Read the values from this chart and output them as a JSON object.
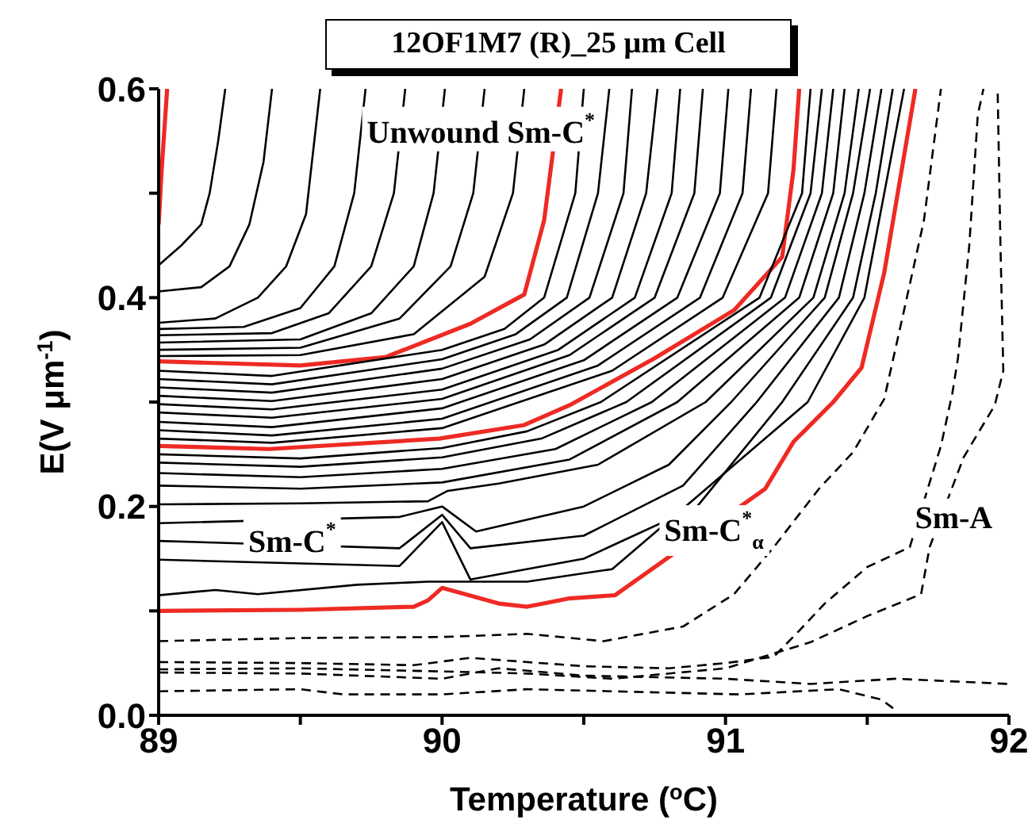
{
  "chart_data": {
    "type": "line",
    "title": "12OF1M7 (R)_25 μm Cell",
    "xlabel": "Temperature ($^{o}$C)",
    "ylabel": "E(V μm$^{-1}$)",
    "xlim": [
      89,
      92
    ],
    "xticks": [
      89,
      {
        "value": 89.5,
        "label": null
      },
      90,
      {
        "value": 90.5,
        "label": null
      },
      91,
      {
        "value": 91.5,
        "label": null
      },
      92
    ],
    "ylim": [
      0,
      0.6
    ],
    "yticks": [
      {
        "value": 0,
        "label": "0.0"
      },
      {
        "value": 0.1,
        "label": null
      },
      0.2,
      {
        "value": 0.3,
        "label": null
      },
      0.4,
      {
        "value": 0.5,
        "label": null
      },
      0.6
    ],
    "marker": "none",
    "line_style": "solid",
    "annotations": [
      "Unwound Sm-C$^{*}$",
      "Sm-C$^{*}$",
      "Sm-C$^{*}$$_{α}$",
      "Sm-A"
    ],
    "series": [
      {
        "color": "#ee2a24",
        "x": [
          89.0,
          89.01,
          89.02,
          89.03
        ],
        "values": [
          0.47,
          0.52,
          0.56,
          0.6
        ]
      },
      {
        "color": "#000000",
        "x": [
          89,
          89.08,
          89.15,
          89.18,
          89.21,
          89.235
        ],
        "values": [
          0.431,
          0.45,
          0.47,
          0.5,
          0.55,
          0.6
        ]
      },
      {
        "color": "#000000",
        "x": [
          89,
          89.15,
          89.25,
          89.32,
          89.37,
          89.4
        ],
        "values": [
          0.406,
          0.41,
          0.43,
          0.47,
          0.53,
          0.6
        ]
      },
      {
        "color": "#000000",
        "x": [
          89,
          89.2,
          89.35,
          89.45,
          89.52,
          89.57
        ],
        "values": [
          0.376,
          0.38,
          0.4,
          0.43,
          0.48,
          0.6
        ]
      },
      {
        "color": "#000000",
        "x": [
          89,
          89.3,
          89.5,
          89.62,
          89.69,
          89.73
        ],
        "values": [
          0.37,
          0.372,
          0.39,
          0.43,
          0.5,
          0.6
        ]
      },
      {
        "color": "#000000",
        "x": [
          89,
          89.4,
          89.6,
          89.75,
          89.83,
          89.87
        ],
        "values": [
          0.364,
          0.366,
          0.385,
          0.43,
          0.5,
          0.6
        ]
      },
      {
        "color": "#000000",
        "x": [
          89,
          89.5,
          89.75,
          89.9,
          89.97,
          90.01
        ],
        "values": [
          0.357,
          0.36,
          0.385,
          0.43,
          0.5,
          0.6
        ]
      },
      {
        "color": "#000000",
        "x": [
          89,
          89.5,
          89.85,
          90.03,
          90.11,
          90.15
        ],
        "values": [
          0.35,
          0.352,
          0.38,
          0.43,
          0.5,
          0.6
        ]
      },
      {
        "color": "#000000",
        "x": [
          89,
          89.5,
          89.9,
          90.15,
          90.25,
          90.29
        ],
        "values": [
          0.344,
          0.345,
          0.365,
          0.42,
          0.5,
          0.6
        ]
      },
      {
        "color": "#ee2a24",
        "x": [
          89,
          89.5,
          89.8,
          90.1,
          90.29,
          90.36,
          90.42
        ],
        "values": [
          0.339,
          0.335,
          0.343,
          0.375,
          0.403,
          0.474,
          0.6
        ]
      },
      {
        "color": "#000000",
        "x": [
          89,
          89.4,
          90,
          90.22,
          90.36,
          90.47,
          90.5
        ],
        "values": [
          0.33,
          0.325,
          0.35,
          0.37,
          0.4,
          0.5,
          0.6
        ]
      },
      {
        "color": "#000000",
        "x": [
          89,
          89.4,
          90,
          90.26,
          90.44,
          90.55,
          90.59
        ],
        "values": [
          0.322,
          0.317,
          0.341,
          0.365,
          0.4,
          0.5,
          0.6
        ]
      },
      {
        "color": "#000000",
        "x": [
          89,
          89.4,
          90,
          90.31,
          90.52,
          90.64,
          90.67
        ],
        "values": [
          0.314,
          0.309,
          0.332,
          0.36,
          0.4,
          0.5,
          0.6
        ]
      },
      {
        "color": "#000000",
        "x": [
          89,
          89.4,
          90,
          90.36,
          90.6,
          90.72,
          90.76
        ],
        "values": [
          0.306,
          0.301,
          0.322,
          0.355,
          0.4,
          0.5,
          0.6
        ]
      },
      {
        "color": "#000000",
        "x": [
          89,
          89.4,
          90,
          90.41,
          90.68,
          90.81,
          90.84
        ],
        "values": [
          0.298,
          0.293,
          0.312,
          0.35,
          0.4,
          0.5,
          0.6
        ]
      },
      {
        "color": "#000000",
        "x": [
          89,
          89.4,
          90,
          90.45,
          90.75,
          90.89,
          90.92
        ],
        "values": [
          0.29,
          0.285,
          0.303,
          0.345,
          0.4,
          0.5,
          0.6
        ]
      },
      {
        "color": "#000000",
        "x": [
          89,
          89.4,
          90,
          90.5,
          90.83,
          90.98,
          91.01
        ],
        "values": [
          0.281,
          0.276,
          0.294,
          0.34,
          0.4,
          0.5,
          0.6
        ]
      },
      {
        "color": "#000000",
        "x": [
          89,
          89.4,
          90,
          90.55,
          90.91,
          91.06,
          91.09
        ],
        "values": [
          0.273,
          0.268,
          0.284,
          0.335,
          0.4,
          0.5,
          0.6
        ]
      },
      {
        "color": "#000000",
        "x": [
          89,
          89.4,
          90,
          90.6,
          90.99,
          91.15,
          91.18
        ],
        "values": [
          0.265,
          0.261,
          0.275,
          0.33,
          0.4,
          0.5,
          0.6
        ]
      },
      {
        "color": "#ee2a24",
        "x": [
          89,
          89.39,
          89.99,
          90.29,
          90.45,
          90.75,
          91.03,
          91.2,
          91.24,
          91.26
        ],
        "values": [
          0.258,
          0.255,
          0.265,
          0.278,
          0.297,
          0.342,
          0.388,
          0.439,
          0.523,
          0.6
        ]
      },
      {
        "color": "#000000",
        "x": [
          89,
          89.5,
          90,
          90.3,
          90.56,
          91.12,
          91.27,
          91.3
        ],
        "values": [
          0.25,
          0.246,
          0.256,
          0.272,
          0.3,
          0.4,
          0.5,
          0.6
        ]
      },
      {
        "color": "#000000",
        "x": [
          89,
          89.5,
          90,
          90.35,
          90.65,
          91.16,
          91.3,
          91.34
        ],
        "values": [
          0.242,
          0.238,
          0.247,
          0.265,
          0.3,
          0.4,
          0.5,
          0.6
        ]
      },
      {
        "color": "#000000",
        "x": [
          89,
          89.5,
          90,
          90.4,
          90.74,
          91.21,
          91.34,
          91.38
        ],
        "values": [
          0.232,
          0.228,
          0.236,
          0.255,
          0.3,
          0.4,
          0.5,
          0.6
        ]
      },
      {
        "color": "#000000",
        "x": [
          89,
          89.5,
          90,
          90.45,
          90.83,
          91.26,
          91.38,
          91.42
        ],
        "values": [
          0.22,
          0.217,
          0.223,
          0.245,
          0.3,
          0.4,
          0.5,
          0.6
        ]
      },
      {
        "color": "#000000",
        "x": [
          89,
          89.5,
          89.95,
          90.02,
          90.2,
          90.55,
          90.93,
          91.31,
          91.42,
          91.47
        ],
        "values": [
          0.202,
          0.203,
          0.205,
          0.215,
          0.222,
          0.24,
          0.3,
          0.4,
          0.5,
          0.6
        ]
      },
      {
        "color": "#000000",
        "x": [
          89,
          89.85,
          90,
          90.12,
          90.5,
          90.8,
          91.02,
          91.35,
          91.45,
          91.51
        ],
        "values": [
          0.184,
          0.19,
          0.2,
          0.176,
          0.2,
          0.24,
          0.3,
          0.4,
          0.5,
          0.6
        ]
      },
      {
        "color": "#000000",
        "x": [
          89,
          89.85,
          90,
          90.1,
          90.5,
          90.85,
          91.11,
          91.4,
          91.49,
          91.55
        ],
        "values": [
          0.167,
          0.16,
          0.192,
          0.16,
          0.172,
          0.22,
          0.3,
          0.4,
          0.5,
          0.6
        ]
      },
      {
        "color": "#000000",
        "x": [
          89,
          89.85,
          90,
          90.1,
          90.5,
          90.9,
          91.2,
          91.45,
          91.53,
          91.59
        ],
        "values": [
          0.149,
          0.143,
          0.185,
          0.13,
          0.15,
          0.2,
          0.3,
          0.4,
          0.5,
          0.6
        ]
      },
      {
        "color": "#000000",
        "x": [
          89,
          89.2,
          89.35,
          89.7,
          89.95,
          90.3,
          90.6,
          91.29,
          91.49,
          91.56,
          91.63
        ],
        "values": [
          0.115,
          0.12,
          0.116,
          0.125,
          0.128,
          0.128,
          0.14,
          0.3,
          0.4,
          0.5,
          0.6
        ]
      },
      {
        "color": "#ee2a24",
        "x": [
          89,
          89.5,
          89.9,
          89.95,
          90,
          90.2,
          90.3,
          90.45,
          90.61,
          91.14,
          91.24,
          91.38,
          91.48,
          91.56,
          91.67
        ],
        "values": [
          0.1,
          0.101,
          0.104,
          0.11,
          0.122,
          0.107,
          0.104,
          0.112,
          0.115,
          0.217,
          0.262,
          0.3,
          0.333,
          0.424,
          0.6
        ]
      },
      {
        "color": "#000000",
        "line_style": "dashed",
        "x": [
          89,
          89.5,
          90,
          90.3,
          90.57,
          90.85,
          91.03,
          91.17,
          91.33,
          91.45,
          91.56,
          91.63,
          91.7,
          91.76
        ],
        "values": [
          0.071,
          0.074,
          0.075,
          0.078,
          0.071,
          0.085,
          0.116,
          0.161,
          0.217,
          0.252,
          0.303,
          0.388,
          0.474,
          0.6
        ]
      },
      {
        "color": "#000000",
        "line_style": "dashed",
        "x": [
          89,
          89.5,
          89.9,
          90.1,
          90.5,
          90.8,
          91.0,
          91.17,
          91.26,
          91.35,
          91.5,
          91.65,
          91.76,
          91.8,
          91.82,
          91.86,
          91.89,
          91.91
        ],
        "values": [
          0.051,
          0.05,
          0.048,
          0.055,
          0.047,
          0.045,
          0.05,
          0.056,
          0.081,
          0.107,
          0.142,
          0.161,
          0.258,
          0.308,
          0.342,
          0.45,
          0.575,
          0.6
        ]
      },
      {
        "color": "#000000",
        "line_style": "dashed",
        "x": [
          89,
          89.5,
          90,
          90.3,
          90.6,
          91.0,
          91.3,
          91.5,
          91.69,
          91.72,
          91.84,
          91.95,
          91.98,
          91.97,
          91.96
        ],
        "values": [
          0.044,
          0.045,
          0.042,
          0.04,
          0.035,
          0.045,
          0.07,
          0.095,
          0.116,
          0.161,
          0.247,
          0.297,
          0.33,
          0.45,
          0.6
        ]
      },
      {
        "color": "#000000",
        "line_style": "dashed",
        "x": [
          89,
          89.5,
          90,
          90.2,
          90.5,
          91,
          91.3,
          91.6,
          92
        ],
        "values": [
          0.041,
          0.04,
          0.035,
          0.045,
          0.038,
          0.035,
          0.03,
          0.035,
          0.03
        ]
      },
      {
        "color": "#000000",
        "line_style": "dashed",
        "x": [
          89,
          89.5,
          89.65,
          90,
          90.3,
          91.05,
          91.4,
          91.55,
          91.6
        ],
        "values": [
          0.023,
          0.025,
          0.02,
          0.02,
          0.025,
          0.02,
          0.025,
          0.015,
          0.005
        ]
      }
    ]
  }
}
